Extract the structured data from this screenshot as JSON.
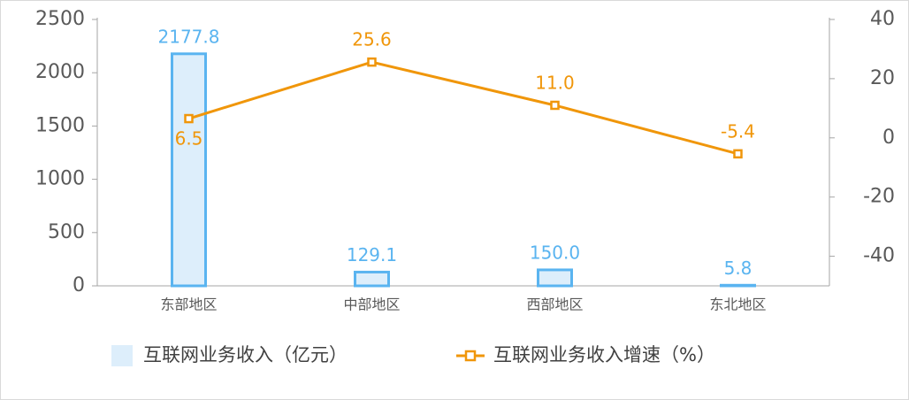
{
  "chart_data": {
    "type": "bar-line",
    "categories": [
      "东部地区",
      "中部地区",
      "西部地区",
      "东北地区"
    ],
    "series": [
      {
        "name": "互联网业务收入（亿元）",
        "type": "bar",
        "color": "#5ab4f0",
        "fill": "#ddeefb",
        "values": [
          2177.8,
          129.1,
          150.0,
          5.8
        ],
        "value_labels": [
          "2177.8",
          "129.1",
          "150.0",
          "5.8"
        ]
      },
      {
        "name": "互联网业务收入增速（%）",
        "type": "line",
        "axis": "y2",
        "color": "#f0960a",
        "values": [
          6.5,
          25.6,
          11.0,
          -5.4
        ],
        "value_labels": [
          "6.5",
          "25.6",
          "11.0",
          "-5.4"
        ]
      }
    ],
    "ylim": [
      0,
      2500
    ],
    "yticks": [
      0,
      500,
      1000,
      1500,
      2000,
      2500
    ],
    "y2lim": [
      -50,
      40
    ],
    "y2ticks": [
      -40,
      -20,
      0,
      20,
      40
    ]
  }
}
